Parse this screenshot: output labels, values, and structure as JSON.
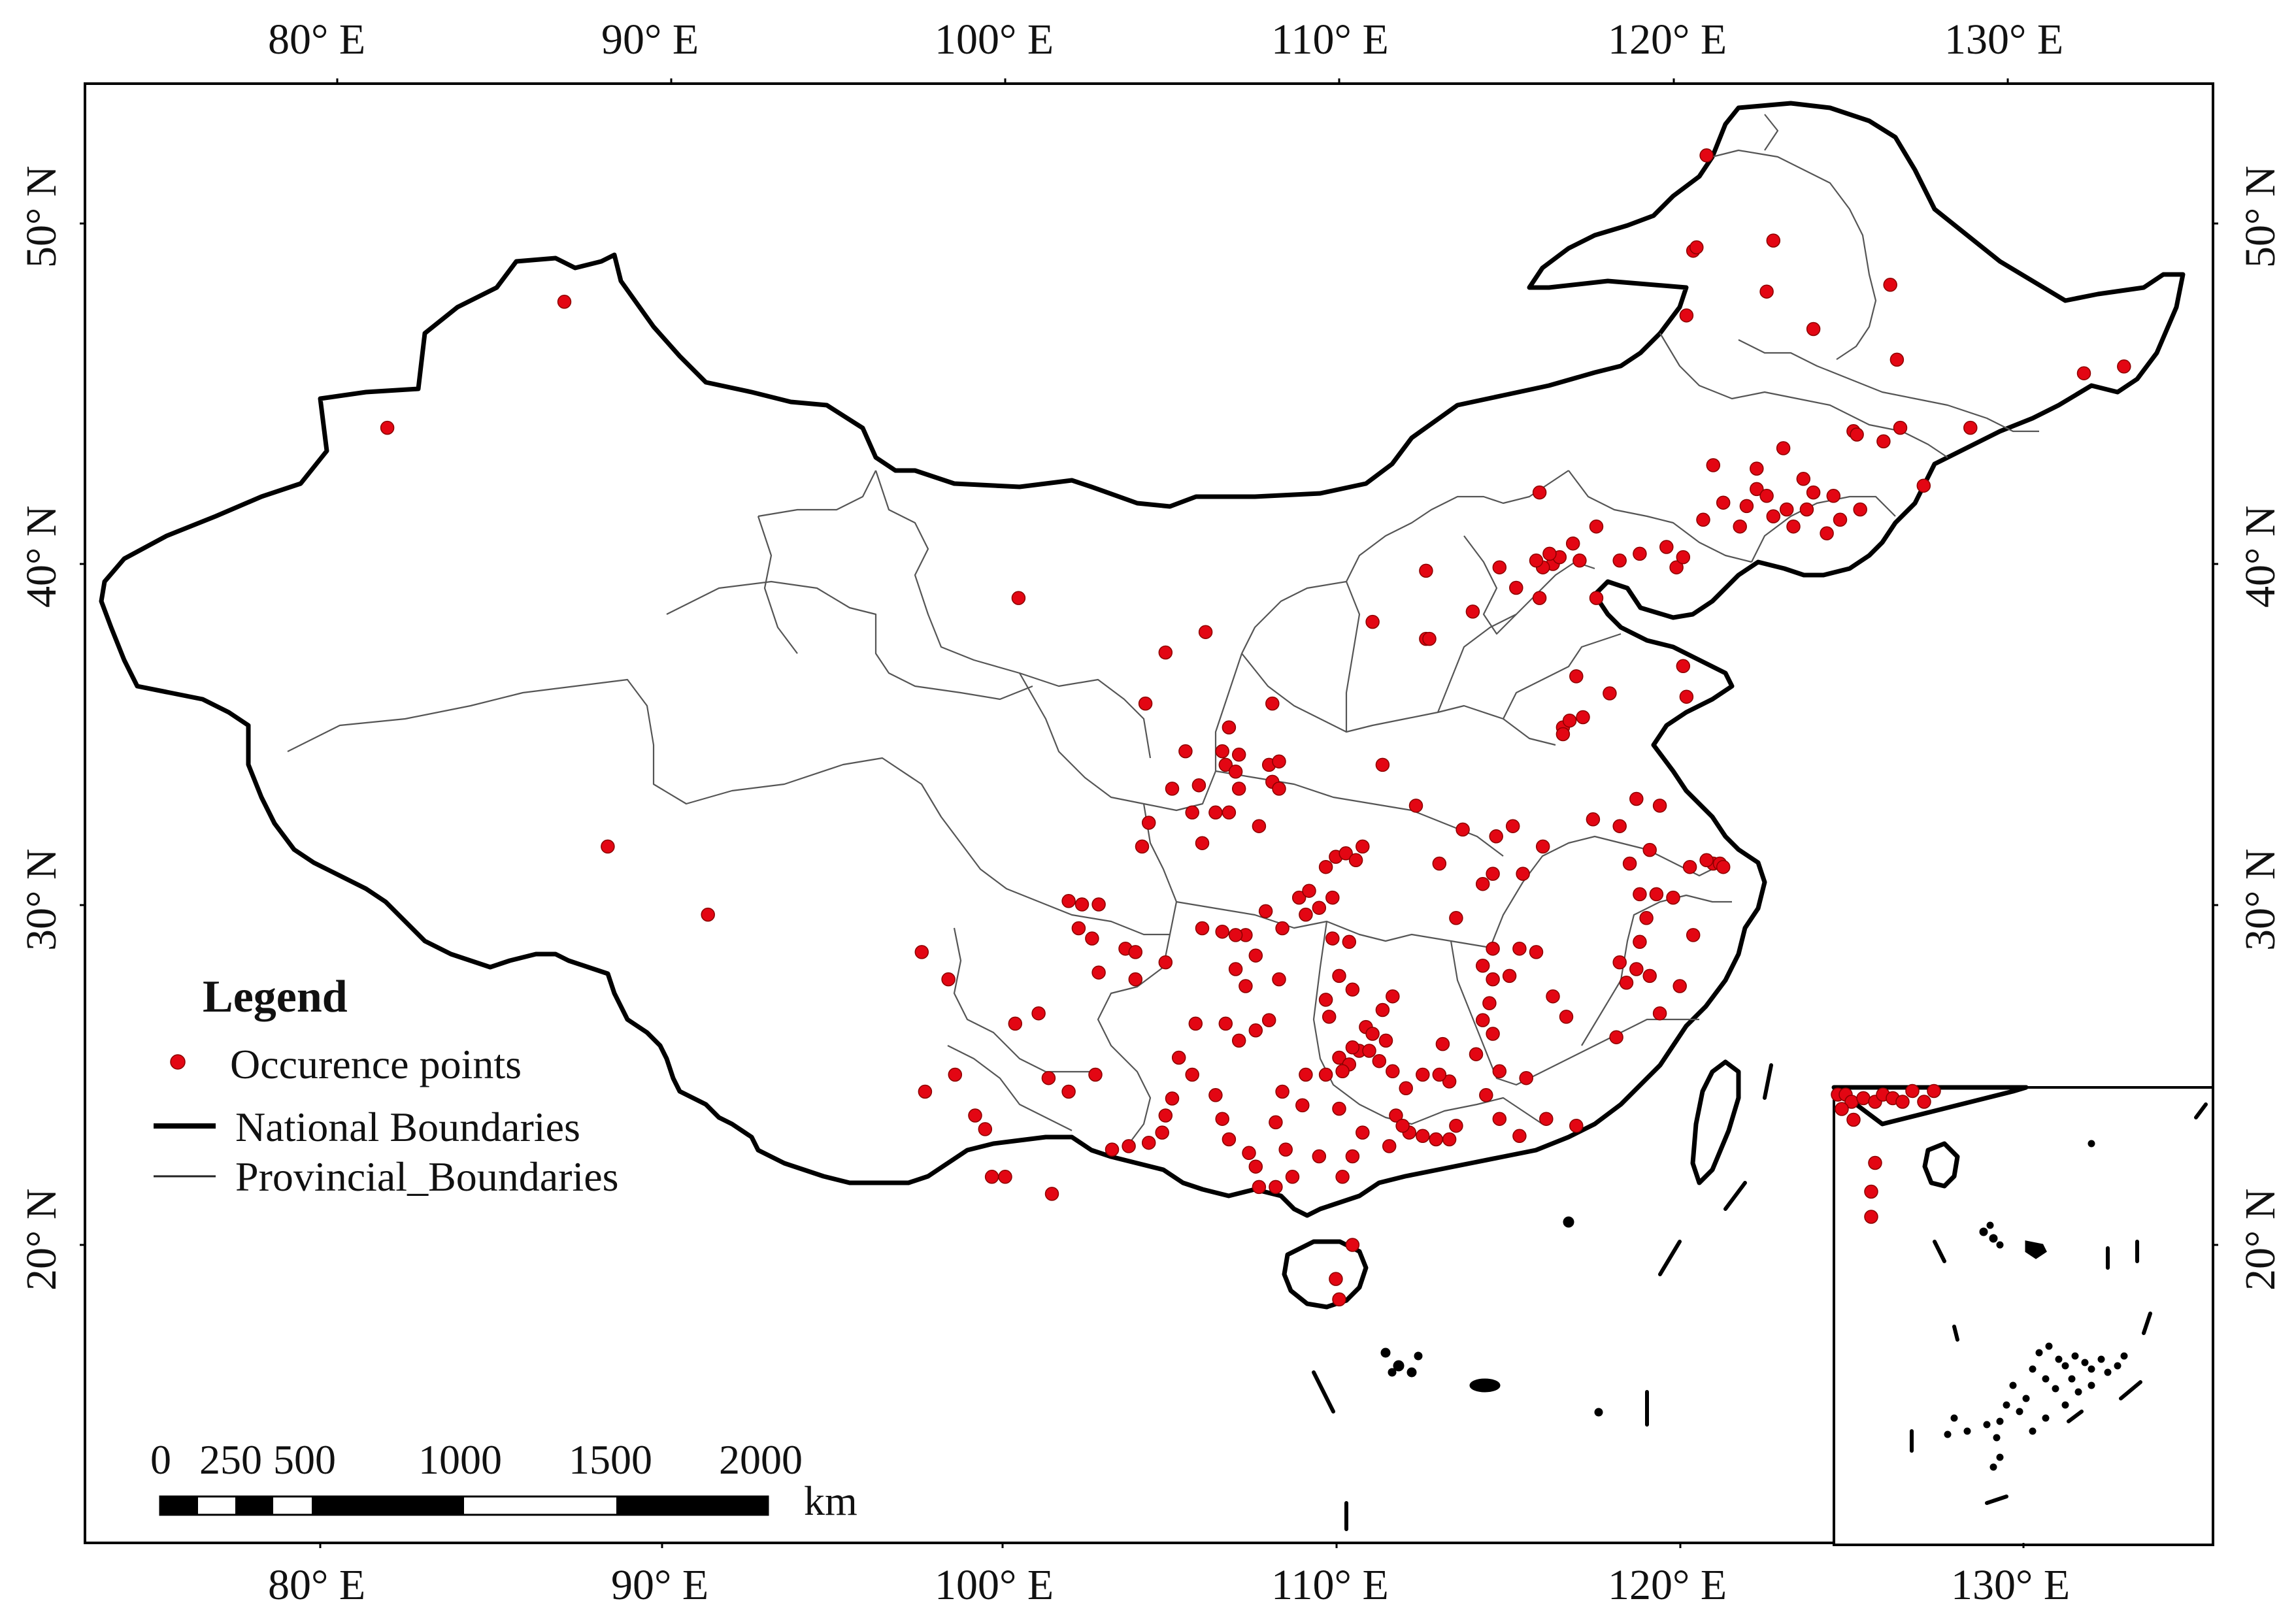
{
  "map": {
    "legend": {
      "title": "Legend",
      "items": [
        {
          "symbol": "red-dot",
          "label": "Occurence points"
        },
        {
          "symbol": "thick-line",
          "label": "National Boundaries"
        },
        {
          "symbol": "thin-line",
          "label": "Provincial_Boundaries"
        }
      ]
    },
    "top_ticks": [
      "80° E",
      "90° E",
      "100° E",
      "110° E",
      "120° E",
      "130° E"
    ],
    "bottom_ticks": [
      "80° E",
      "90° E",
      "100° E",
      "110° E",
      "120° E",
      "130° E"
    ],
    "left_ticks": [
      "50° N",
      "40° N",
      "30° N",
      "20° N"
    ],
    "right_ticks": [
      "50° N",
      "40° N",
      "30° N",
      "20° N"
    ],
    "scale_bar": {
      "labels": [
        "0",
        "250",
        "500",
        "1000",
        "1500",
        "2000"
      ],
      "unit": "km"
    },
    "colors": {
      "points": "#e30613",
      "boundary": "#000000",
      "province": "#555555",
      "background": "#ffffff"
    },
    "occurrence_points": [
      [
        81.5,
        44.0
      ],
      [
        86.8,
        47.7
      ],
      [
        88.1,
        31.7
      ],
      [
        91.1,
        29.7
      ],
      [
        97.5,
        28.6
      ],
      [
        98.3,
        27.8
      ],
      [
        98.5,
        25.0
      ],
      [
        97.6,
        24.5
      ],
      [
        99.1,
        23.8
      ],
      [
        99.4,
        23.4
      ],
      [
        99.6,
        22.0
      ],
      [
        100.0,
        22.0
      ],
      [
        101.4,
        21.5
      ],
      [
        101.3,
        24.9
      ],
      [
        101.0,
        26.8
      ],
      [
        100.3,
        26.5
      ],
      [
        101.9,
        24.5
      ],
      [
        102.7,
        25.0
      ],
      [
        102.8,
        28.0
      ],
      [
        102.6,
        29.0
      ],
      [
        102.2,
        29.3
      ],
      [
        101.9,
        30.1
      ],
      [
        102.3,
        30.0
      ],
      [
        102.8,
        30.0
      ],
      [
        103.6,
        28.7
      ],
      [
        103.9,
        28.6
      ],
      [
        103.9,
        27.8
      ],
      [
        103.2,
        22.8
      ],
      [
        103.7,
        22.9
      ],
      [
        104.3,
        23.0
      ],
      [
        104.7,
        23.3
      ],
      [
        104.8,
        28.3
      ],
      [
        104.1,
        31.7
      ],
      [
        104.3,
        32.4
      ],
      [
        105.0,
        33.4
      ],
      [
        104.2,
        35.9
      ],
      [
        104.8,
        37.4
      ],
      [
        106.0,
        38.0
      ],
      [
        100.4,
        39.0
      ],
      [
        105.6,
        32.7
      ],
      [
        105.9,
        31.8
      ],
      [
        105.8,
        33.5
      ],
      [
        105.4,
        34.5
      ],
      [
        106.3,
        32.7
      ],
      [
        106.6,
        34.1
      ],
      [
        106.9,
        33.9
      ],
      [
        107.0,
        34.4
      ],
      [
        107.0,
        33.4
      ],
      [
        106.7,
        32.7
      ],
      [
        107.6,
        32.3
      ],
      [
        108.0,
        33.6
      ],
      [
        108.2,
        33.4
      ],
      [
        107.9,
        34.1
      ],
      [
        108.2,
        34.2
      ],
      [
        108.0,
        35.9
      ],
      [
        106.7,
        35.2
      ],
      [
        106.5,
        34.5
      ],
      [
        105.9,
        29.3
      ],
      [
        106.5,
        29.2
      ],
      [
        107.2,
        29.1
      ],
      [
        106.9,
        29.1
      ],
      [
        107.8,
        29.8
      ],
      [
        108.3,
        29.3
      ],
      [
        108.8,
        30.2
      ],
      [
        109.0,
        29.7
      ],
      [
        109.1,
        30.4
      ],
      [
        109.4,
        29.9
      ],
      [
        109.8,
        30.2
      ],
      [
        109.6,
        31.1
      ],
      [
        109.9,
        31.4
      ],
      [
        110.2,
        31.5
      ],
      [
        110.7,
        31.7
      ],
      [
        110.5,
        31.3
      ],
      [
        109.8,
        29.0
      ],
      [
        110.3,
        28.9
      ],
      [
        110.0,
        27.9
      ],
      [
        110.4,
        27.5
      ],
      [
        109.6,
        27.2
      ],
      [
        109.7,
        26.7
      ],
      [
        110.0,
        25.5
      ],
      [
        110.3,
        25.3
      ],
      [
        110.6,
        25.7
      ],
      [
        110.9,
        25.7
      ],
      [
        110.4,
        25.8
      ],
      [
        110.1,
        25.1
      ],
      [
        109.6,
        25.0
      ],
      [
        109.0,
        25.0
      ],
      [
        108.9,
        24.1
      ],
      [
        108.3,
        24.5
      ],
      [
        108.1,
        23.6
      ],
      [
        108.4,
        22.8
      ],
      [
        108.6,
        22.0
      ],
      [
        108.1,
        21.7
      ],
      [
        107.6,
        21.7
      ],
      [
        107.5,
        22.3
      ],
      [
        107.3,
        22.7
      ],
      [
        106.7,
        23.1
      ],
      [
        106.5,
        23.7
      ],
      [
        106.3,
        24.4
      ],
      [
        105.6,
        25.0
      ],
      [
        105.2,
        25.5
      ],
      [
        105.7,
        26.5
      ],
      [
        106.6,
        26.5
      ],
      [
        107.0,
        26.0
      ],
      [
        107.5,
        26.3
      ],
      [
        107.9,
        26.6
      ],
      [
        108.2,
        27.8
      ],
      [
        107.2,
        27.6
      ],
      [
        106.9,
        28.1
      ],
      [
        107.5,
        28.5
      ],
      [
        104.8,
        23.8
      ],
      [
        105.0,
        24.3
      ],
      [
        110.8,
        26.4
      ],
      [
        111.0,
        26.2
      ],
      [
        111.3,
        26.9
      ],
      [
        111.6,
        27.3
      ],
      [
        111.4,
        26.0
      ],
      [
        111.2,
        25.4
      ],
      [
        111.6,
        25.1
      ],
      [
        112.0,
        24.6
      ],
      [
        111.7,
        23.8
      ],
      [
        112.1,
        23.3
      ],
      [
        112.5,
        23.2
      ],
      [
        112.9,
        23.1
      ],
      [
        113.3,
        23.1
      ],
      [
        113.5,
        23.5
      ],
      [
        113.3,
        24.8
      ],
      [
        113.0,
        25.0
      ],
      [
        112.5,
        25.0
      ],
      [
        111.9,
        23.5
      ],
      [
        111.5,
        22.9
      ],
      [
        110.4,
        22.6
      ],
      [
        110.1,
        22.0
      ],
      [
        109.4,
        22.6
      ],
      [
        110.7,
        23.3
      ],
      [
        110.0,
        24.0
      ],
      [
        110.4,
        20.0
      ],
      [
        109.9,
        19.0
      ],
      [
        110.0,
        18.4
      ],
      [
        114.1,
        25.6
      ],
      [
        114.3,
        26.6
      ],
      [
        114.5,
        27.1
      ],
      [
        114.6,
        27.8
      ],
      [
        114.3,
        28.2
      ],
      [
        114.6,
        28.7
      ],
      [
        115.4,
        28.7
      ],
      [
        115.9,
        28.6
      ],
      [
        115.1,
        27.9
      ],
      [
        114.6,
        26.2
      ],
      [
        114.8,
        25.1
      ],
      [
        114.4,
        24.4
      ],
      [
        114.8,
        23.7
      ],
      [
        115.4,
        23.2
      ],
      [
        116.2,
        23.7
      ],
      [
        115.6,
        24.9
      ],
      [
        116.4,
        27.3
      ],
      [
        116.8,
        26.7
      ],
      [
        117.1,
        23.5
      ],
      [
        118.3,
        26.1
      ],
      [
        118.4,
        28.3
      ],
      [
        118.6,
        27.7
      ],
      [
        118.9,
        28.1
      ],
      [
        119.0,
        28.9
      ],
      [
        119.2,
        29.6
      ],
      [
        119.3,
        27.9
      ],
      [
        119.6,
        26.8
      ],
      [
        120.2,
        27.6
      ],
      [
        120.6,
        29.1
      ],
      [
        120.0,
        30.2
      ],
      [
        119.5,
        30.3
      ],
      [
        119.0,
        30.3
      ],
      [
        118.7,
        31.2
      ],
      [
        118.4,
        32.3
      ],
      [
        118.9,
        33.1
      ],
      [
        119.6,
        32.9
      ],
      [
        119.3,
        31.6
      ],
      [
        120.5,
        31.1
      ],
      [
        121.2,
        31.2
      ],
      [
        121.0,
        31.3
      ],
      [
        121.4,
        31.2
      ],
      [
        121.5,
        31.1
      ],
      [
        113.0,
        31.2
      ],
      [
        114.3,
        30.6
      ],
      [
        114.6,
        30.9
      ],
      [
        112.3,
        32.9
      ],
      [
        111.3,
        34.1
      ],
      [
        113.7,
        32.2
      ],
      [
        114.7,
        32.0
      ],
      [
        115.2,
        32.3
      ],
      [
        115.5,
        30.9
      ],
      [
        116.1,
        31.7
      ],
      [
        117.6,
        32.5
      ],
      [
        116.7,
        35.2
      ],
      [
        116.9,
        35.4
      ],
      [
        117.3,
        35.5
      ],
      [
        116.7,
        35.0
      ],
      [
        117.1,
        36.7
      ],
      [
        118.1,
        36.2
      ],
      [
        120.4,
        36.1
      ],
      [
        120.3,
        37.0
      ],
      [
        117.7,
        39.0
      ],
      [
        117.2,
        40.1
      ],
      [
        116.4,
        40.0
      ],
      [
        116.1,
        39.9
      ],
      [
        115.9,
        40.1
      ],
      [
        116.6,
        40.2
      ],
      [
        116.3,
        40.3
      ],
      [
        117.0,
        40.6
      ],
      [
        116.0,
        39.0
      ],
      [
        115.3,
        39.3
      ],
      [
        114.8,
        39.9
      ],
      [
        114.0,
        38.6
      ],
      [
        112.6,
        37.8
      ],
      [
        112.6,
        39.8
      ],
      [
        111.0,
        38.3
      ],
      [
        113.5,
        29.6
      ],
      [
        113.1,
        25.9
      ],
      [
        116.0,
        42.1
      ],
      [
        117.7,
        41.1
      ],
      [
        118.4,
        40.1
      ],
      [
        119.0,
        40.3
      ],
      [
        119.8,
        40.5
      ],
      [
        120.1,
        39.9
      ],
      [
        120.3,
        40.2
      ],
      [
        120.9,
        41.3
      ],
      [
        121.5,
        41.8
      ],
      [
        122.0,
        41.1
      ],
      [
        122.2,
        41.7
      ],
      [
        122.5,
        42.2
      ],
      [
        123.0,
        41.4
      ],
      [
        123.4,
        41.6
      ],
      [
        123.6,
        41.1
      ],
      [
        124.0,
        41.6
      ],
      [
        124.6,
        40.9
      ],
      [
        125.0,
        41.3
      ],
      [
        124.2,
        42.1
      ],
      [
        123.9,
        42.5
      ],
      [
        122.5,
        42.8
      ],
      [
        124.8,
        42.0
      ],
      [
        125.6,
        41.6
      ],
      [
        121.2,
        42.9
      ],
      [
        122.8,
        42.0
      ],
      [
        123.3,
        43.4
      ],
      [
        125.4,
        43.9
      ],
      [
        125.5,
        43.8
      ],
      [
        126.3,
        43.6
      ],
      [
        126.8,
        44.0
      ],
      [
        127.5,
        42.3
      ],
      [
        128.9,
        44.0
      ],
      [
        124.2,
        46.9
      ],
      [
        126.7,
        46.0
      ],
      [
        126.5,
        48.2
      ],
      [
        122.8,
        48.0
      ],
      [
        120.6,
        49.2
      ],
      [
        120.7,
        49.3
      ],
      [
        123.0,
        49.5
      ],
      [
        120.4,
        47.3
      ],
      [
        132.3,
        45.6
      ],
      [
        133.5,
        45.8
      ],
      [
        121.0,
        52.0
      ],
      [
        112.7,
        37.8
      ]
    ],
    "inset_points": [
      [
        108.2,
        22.0
      ],
      [
        108.6,
        22.0
      ],
      [
        108.9,
        21.8
      ],
      [
        109.5,
        21.9
      ],
      [
        110.1,
        21.8
      ],
      [
        110.5,
        22.0
      ],
      [
        111.0,
        21.9
      ],
      [
        111.5,
        21.8
      ],
      [
        112.0,
        22.1
      ],
      [
        112.6,
        21.8
      ],
      [
        113.1,
        22.1
      ],
      [
        108.4,
        21.6
      ],
      [
        109.0,
        21.3
      ],
      [
        110.1,
        20.1
      ],
      [
        109.9,
        19.3
      ],
      [
        109.9,
        18.6
      ]
    ]
  }
}
